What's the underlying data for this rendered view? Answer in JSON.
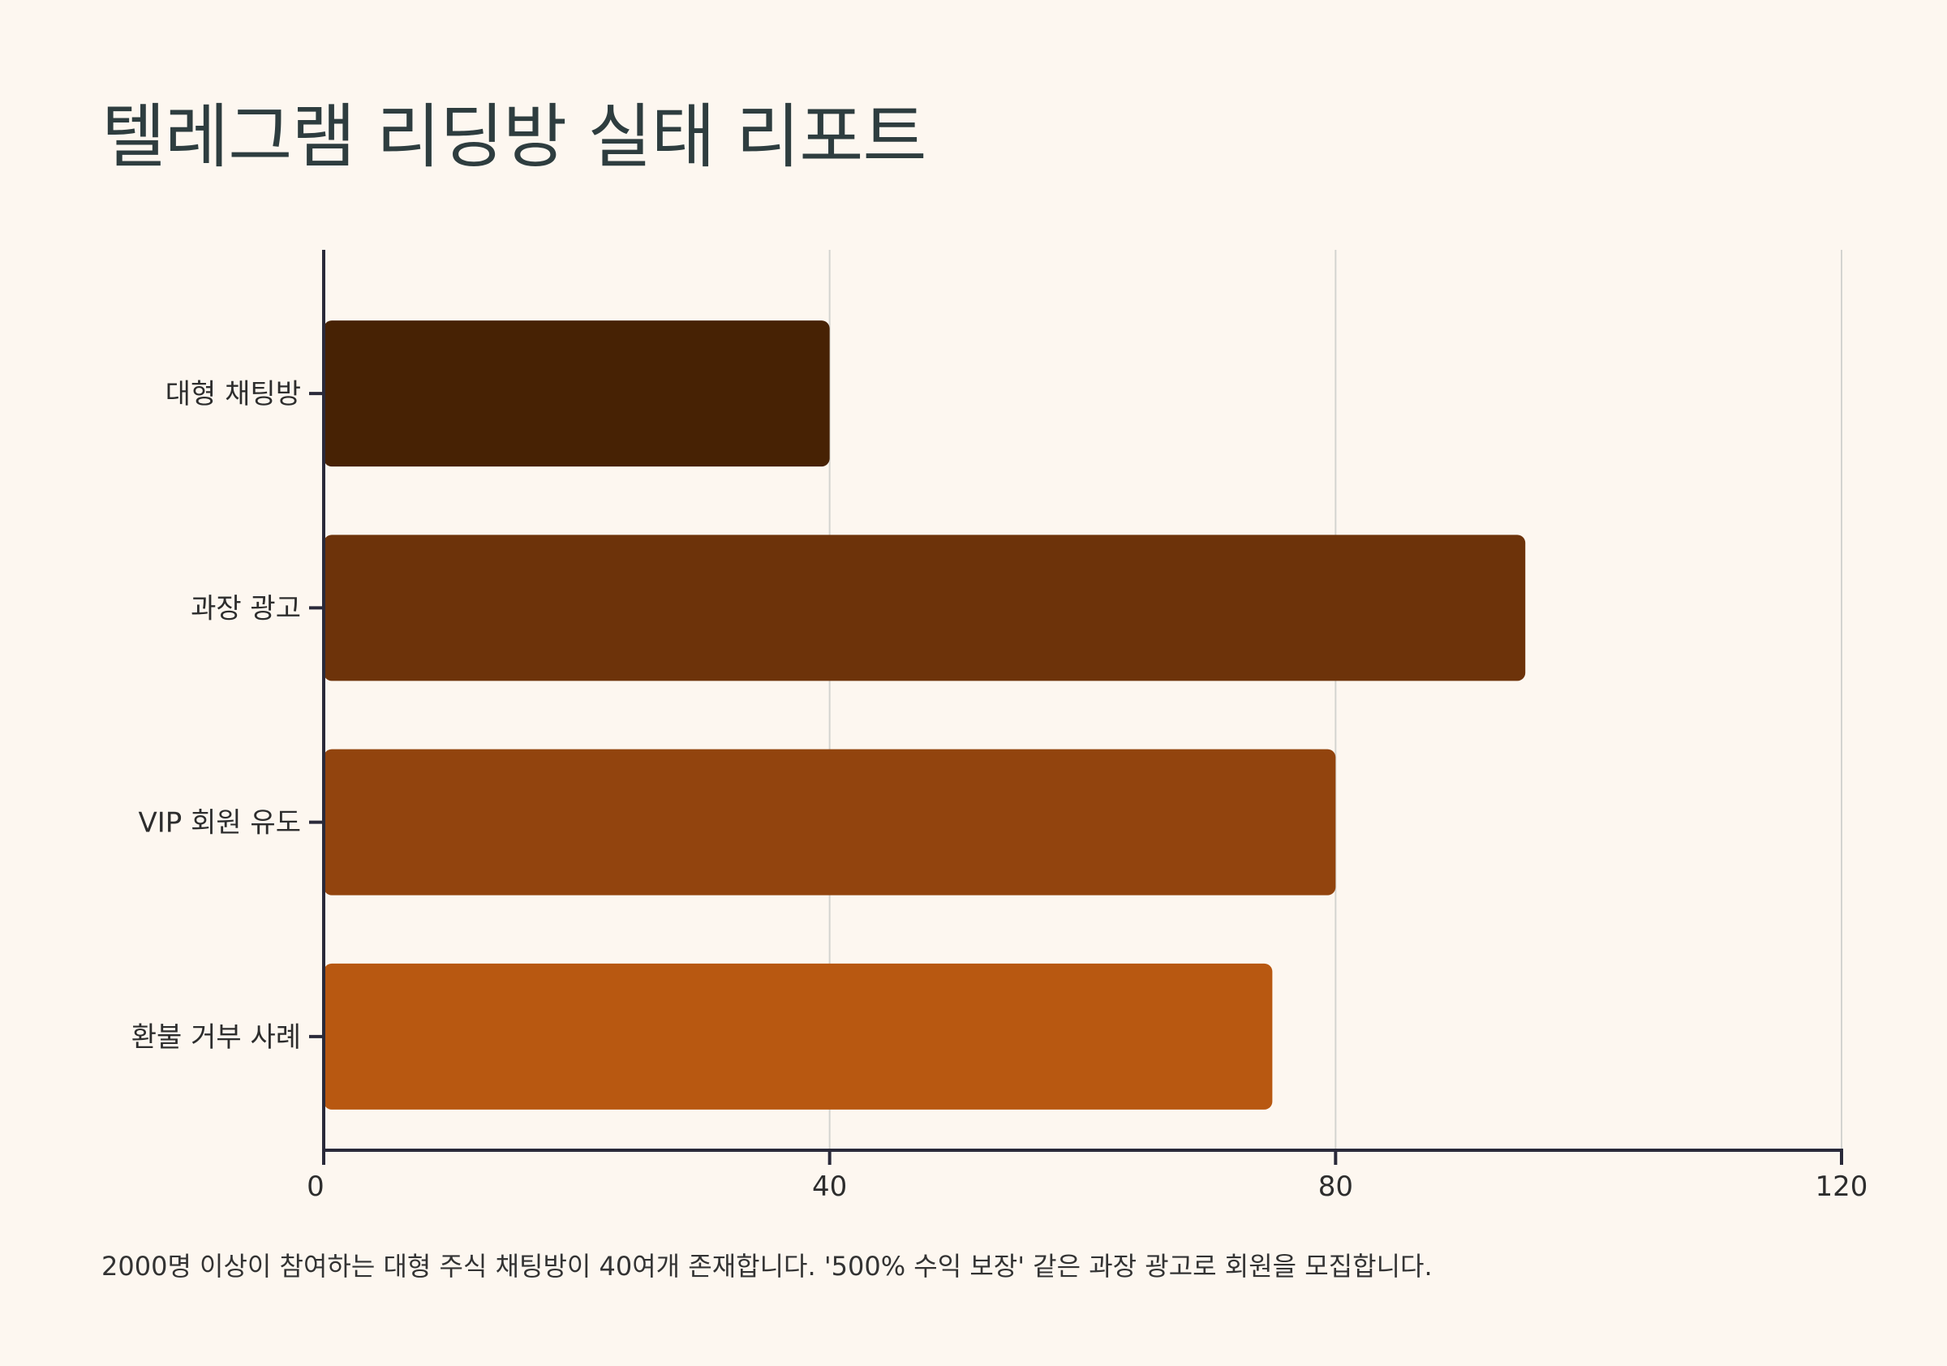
{
  "title": "텔레그램 리딩방 실태 리포트",
  "caption": "2000명 이상이 참여하는 대형 주식 채팅방이 40여개 존재합니다. '500% 수익 보장' 같은 과장 광고로 회원을 모집합니다.",
  "colors": {
    "background": "#fdf7f0",
    "axis": "#2a2a3a",
    "grid": "#d4d4d0",
    "bars": [
      "#472204",
      "#6d330a",
      "#92440e",
      "#b85811"
    ]
  },
  "chart_data": {
    "type": "bar",
    "orientation": "horizontal",
    "categories": [
      "대형 채팅방",
      "과장 광고",
      "VIP 회원 유도",
      "환불 거부 사례"
    ],
    "values": [
      40,
      95,
      80,
      75
    ],
    "xlim": [
      0,
      120
    ],
    "xticks": [
      "0",
      "40",
      "80",
      "120"
    ],
    "grid": "vertical"
  }
}
